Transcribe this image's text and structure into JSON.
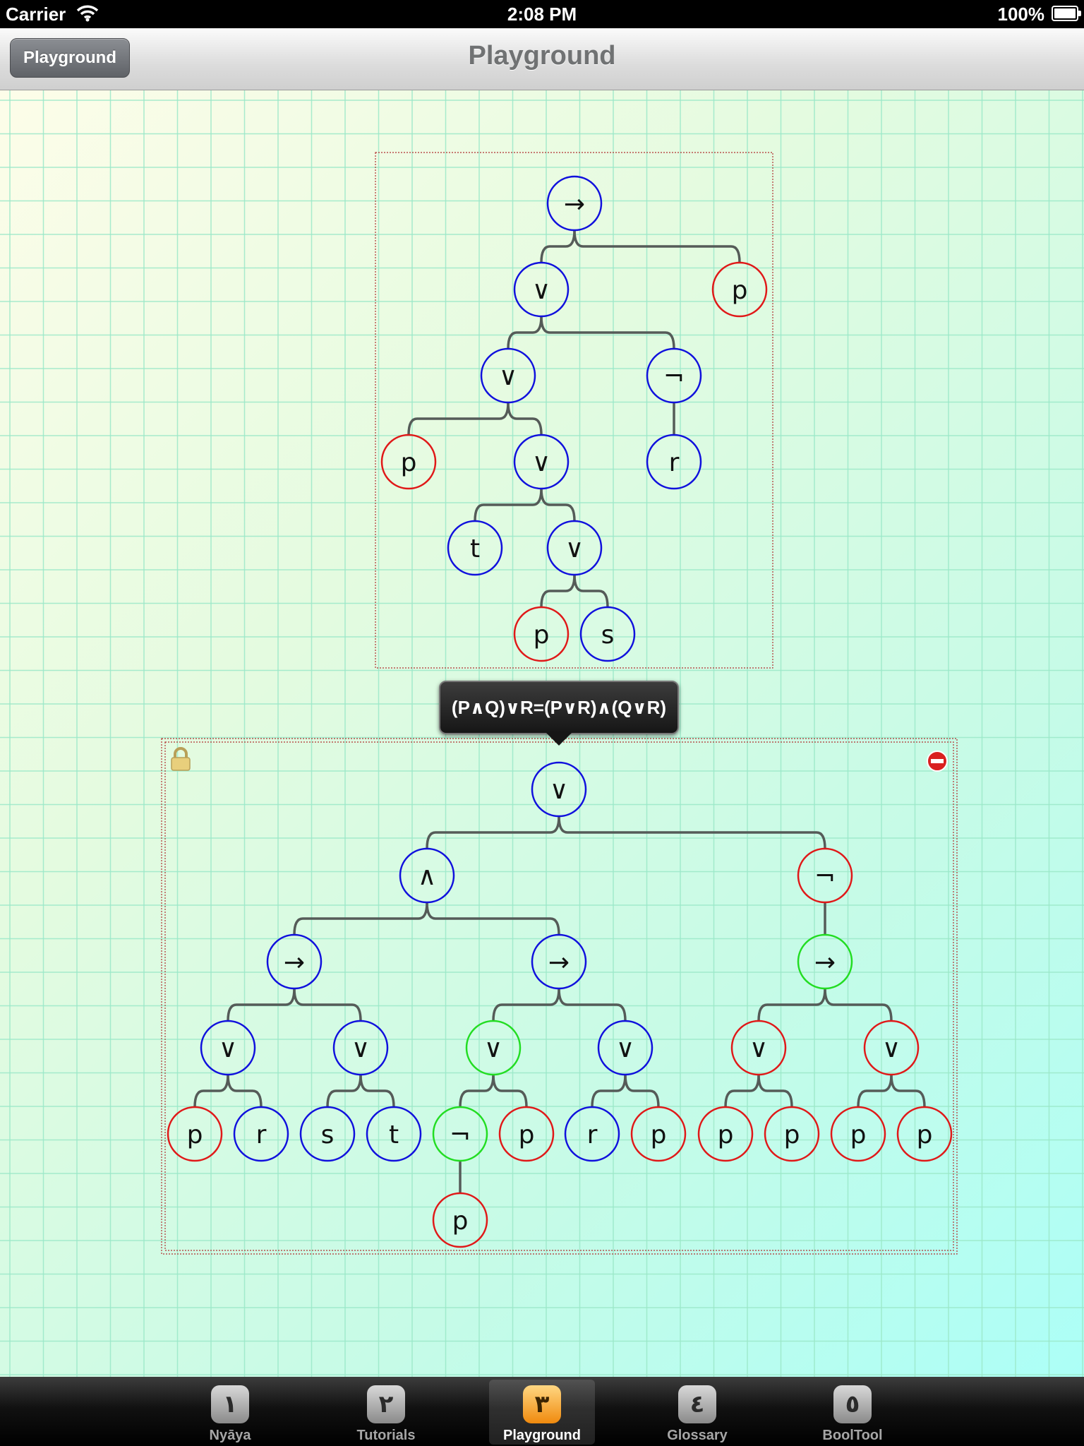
{
  "status_bar": {
    "carrier": "Carrier",
    "time": "2:08 PM",
    "battery": "100%"
  },
  "nav": {
    "back_label": "Playground",
    "title": "Playground"
  },
  "popover": {
    "formula": "(P∧Q)∨R=(P∨R)∧(Q∨R)"
  },
  "colors": {
    "blue": "#1010dd",
    "red": "#e01818",
    "green": "#22dd22",
    "edge": "#555b58",
    "frame": "#b03030"
  },
  "tree1": {
    "nodes": [
      {
        "id": "a",
        "label": "→",
        "color": "blue"
      },
      {
        "id": "b",
        "label": "∨",
        "color": "blue"
      },
      {
        "id": "c",
        "label": "p",
        "color": "red"
      },
      {
        "id": "d",
        "label": "∨",
        "color": "blue"
      },
      {
        "id": "e",
        "label": "¬",
        "color": "blue"
      },
      {
        "id": "f",
        "label": "p",
        "color": "red"
      },
      {
        "id": "g",
        "label": "∨",
        "color": "blue"
      },
      {
        "id": "h",
        "label": "r",
        "color": "blue"
      },
      {
        "id": "i",
        "label": "t",
        "color": "blue"
      },
      {
        "id": "j",
        "label": "∨",
        "color": "blue"
      },
      {
        "id": "k",
        "label": "p",
        "color": "red"
      },
      {
        "id": "l",
        "label": "s",
        "color": "blue"
      }
    ],
    "edges": [
      [
        "a",
        "b"
      ],
      [
        "a",
        "c"
      ],
      [
        "b",
        "d"
      ],
      [
        "b",
        "e"
      ],
      [
        "d",
        "f"
      ],
      [
        "d",
        "g"
      ],
      [
        "e",
        "h"
      ],
      [
        "g",
        "i"
      ],
      [
        "g",
        "j"
      ],
      [
        "j",
        "k"
      ],
      [
        "j",
        "l"
      ]
    ]
  },
  "tree2": {
    "nodes": [
      {
        "id": "A",
        "label": "∨",
        "color": "blue"
      },
      {
        "id": "B",
        "label": "∧",
        "color": "blue"
      },
      {
        "id": "C",
        "label": "¬",
        "color": "red"
      },
      {
        "id": "D",
        "label": "→",
        "color": "blue"
      },
      {
        "id": "E",
        "label": "→",
        "color": "blue"
      },
      {
        "id": "F",
        "label": "→",
        "color": "green"
      },
      {
        "id": "G",
        "label": "∨",
        "color": "blue"
      },
      {
        "id": "H",
        "label": "∨",
        "color": "blue"
      },
      {
        "id": "I",
        "label": "∨",
        "color": "green"
      },
      {
        "id": "J",
        "label": "∨",
        "color": "blue"
      },
      {
        "id": "K",
        "label": "∨",
        "color": "red"
      },
      {
        "id": "L",
        "label": "∨",
        "color": "red"
      },
      {
        "id": "M",
        "label": "p",
        "color": "red"
      },
      {
        "id": "N",
        "label": "r",
        "color": "blue"
      },
      {
        "id": "O",
        "label": "s",
        "color": "blue"
      },
      {
        "id": "P",
        "label": "t",
        "color": "blue"
      },
      {
        "id": "Q",
        "label": "¬",
        "color": "green"
      },
      {
        "id": "R",
        "label": "p",
        "color": "red"
      },
      {
        "id": "S",
        "label": "r",
        "color": "blue"
      },
      {
        "id": "T",
        "label": "p",
        "color": "red"
      },
      {
        "id": "U",
        "label": "p",
        "color": "red"
      },
      {
        "id": "V",
        "label": "p",
        "color": "red"
      },
      {
        "id": "W",
        "label": "p",
        "color": "red"
      },
      {
        "id": "X",
        "label": "p",
        "color": "red"
      },
      {
        "id": "Y",
        "label": "p",
        "color": "red"
      }
    ],
    "edges": [
      [
        "A",
        "B"
      ],
      [
        "A",
        "C"
      ],
      [
        "B",
        "D"
      ],
      [
        "B",
        "E"
      ],
      [
        "C",
        "F"
      ],
      [
        "D",
        "G"
      ],
      [
        "D",
        "H"
      ],
      [
        "E",
        "I"
      ],
      [
        "E",
        "J"
      ],
      [
        "F",
        "K"
      ],
      [
        "F",
        "L"
      ],
      [
        "G",
        "M"
      ],
      [
        "G",
        "N"
      ],
      [
        "H",
        "O"
      ],
      [
        "H",
        "P"
      ],
      [
        "I",
        "Q"
      ],
      [
        "I",
        "R"
      ],
      [
        "J",
        "S"
      ],
      [
        "J",
        "T"
      ],
      [
        "K",
        "U"
      ],
      [
        "K",
        "V"
      ],
      [
        "L",
        "W"
      ],
      [
        "L",
        "X"
      ],
      [
        "Q",
        "Y"
      ]
    ]
  },
  "tabs": [
    {
      "icon": "١",
      "label": "Nyāya"
    },
    {
      "icon": "٢",
      "label": "Tutorials"
    },
    {
      "icon": "٣",
      "label": "Playground",
      "selected": true
    },
    {
      "icon": "٤",
      "label": "Glossary"
    },
    {
      "icon": "٥",
      "label": "BoolTool"
    }
  ]
}
